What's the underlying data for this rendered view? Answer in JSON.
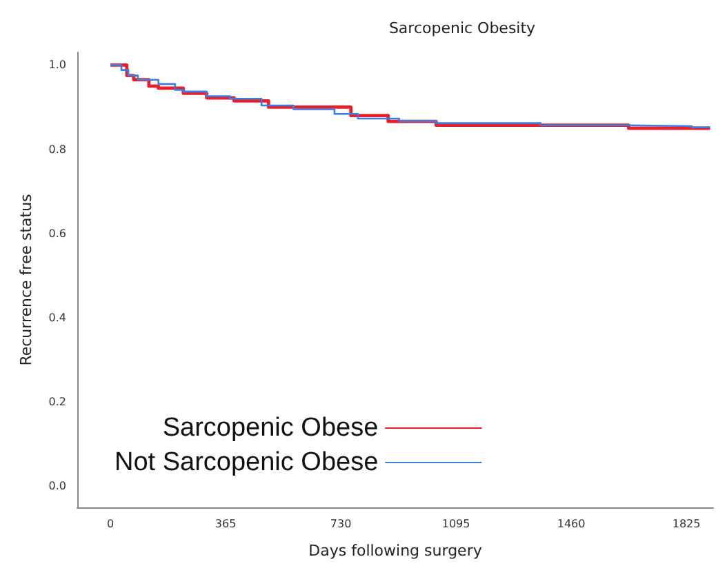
{
  "chart_data": {
    "type": "step",
    "title": "Sarcopenic Obesity",
    "xlabel": "Days following surgery",
    "ylabel": "Recurrence free status",
    "xlim": [
      -105,
      1910
    ],
    "xticks": [
      0,
      365,
      730,
      1095,
      1460,
      1825
    ],
    "ylim": [
      -0.05,
      1.03
    ],
    "yticks": [
      {
        "value": 0,
        "label": "0.0"
      },
      0.2,
      0.4,
      0.6,
      0.8,
      {
        "value": 1,
        "label": "1.0"
      }
    ],
    "legend": "bottom left",
    "marker": "none",
    "series": [
      {
        "name": "Sarcopenic Obese",
        "color": "#e8202a",
        "x": [
          0,
          52,
          74,
          122,
          152,
          231,
          305,
          392,
          501,
          762,
          880,
          1032,
          1642,
          1900
        ],
        "values": [
          1.0,
          0.975,
          0.965,
          0.95,
          0.945,
          0.933,
          0.922,
          0.915,
          0.9,
          0.88,
          0.866,
          0.857,
          0.85,
          0.85
        ]
      },
      {
        "name": "Not Sarcopenic Obese",
        "color": "#3b7de0",
        "x": [
          0,
          35,
          57,
          87,
          152,
          205,
          231,
          305,
          379,
          479,
          580,
          710,
          784,
          915,
          1032,
          1363,
          1642,
          1842,
          1900
        ],
        "values": [
          1.0,
          0.988,
          0.975,
          0.965,
          0.955,
          0.941,
          0.937,
          0.926,
          0.92,
          0.904,
          0.895,
          0.884,
          0.873,
          0.867,
          0.862,
          0.857,
          0.855,
          0.852,
          0.852
        ]
      }
    ]
  }
}
